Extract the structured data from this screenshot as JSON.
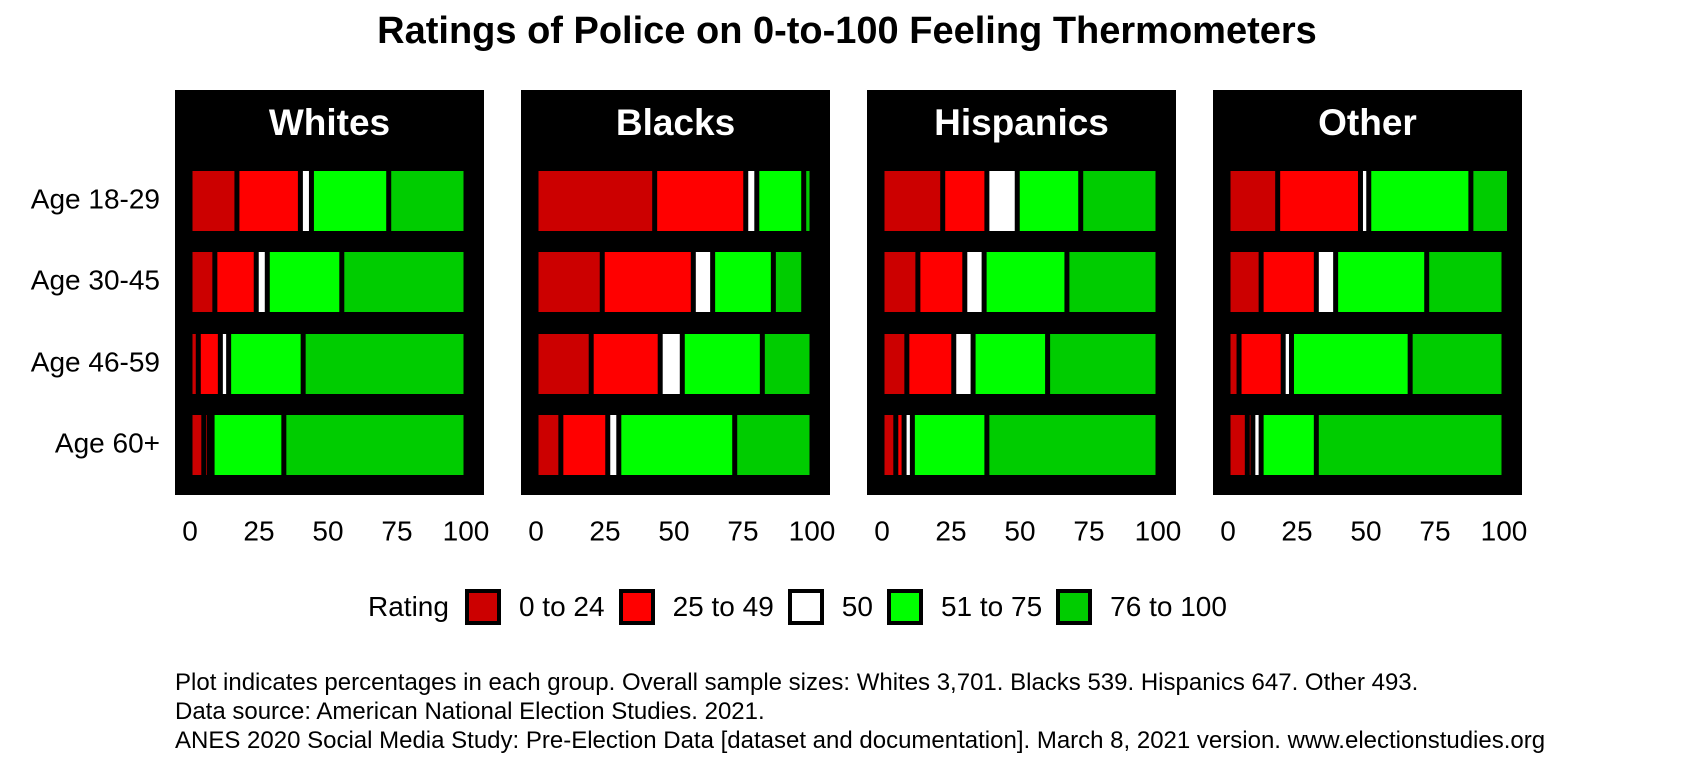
{
  "chart_data": {
    "type": "bar",
    "title": "Ratings of Police on 0-to-100 Feeling Thermometers",
    "facets": [
      "Whites",
      "Blacks",
      "Hispanics",
      "Other"
    ],
    "categories": [
      "Age 18-29",
      "Age 30-45",
      "Age 46-59",
      "Age 60+"
    ],
    "x_ticks": [
      "0",
      "25",
      "50",
      "75",
      "100"
    ],
    "xlim": [
      0,
      100
    ],
    "stacked": true,
    "legend_title": "Rating",
    "legend_position": "bottom",
    "series": [
      {
        "name": "0 to 24",
        "color": "#cc0000"
      },
      {
        "name": "25 to 49",
        "color": "#ff0000"
      },
      {
        "name": "50",
        "color": "#ffffff"
      },
      {
        "name": "51 to 75",
        "color": "#00ff00"
      },
      {
        "name": "76 to 100",
        "color": "#00cc00"
      }
    ],
    "panel_background": "#000000",
    "values": {
      "Whites": [
        [
          17,
          23,
          4,
          28,
          28
        ],
        [
          9,
          15,
          4,
          27,
          45
        ],
        [
          3,
          8,
          3,
          27,
          59
        ],
        [
          5,
          2,
          1,
          26,
          66
        ]
      ],
      "Blacks": [
        [
          43,
          33,
          4,
          17,
          3
        ],
        [
          24,
          33,
          7,
          22,
          11
        ],
        [
          20,
          25,
          8,
          29,
          18
        ],
        [
          9,
          17,
          4,
          42,
          28
        ]
      ],
      "Hispanics": [
        [
          22,
          16,
          11,
          23,
          28
        ],
        [
          13,
          17,
          7,
          30,
          33
        ],
        [
          9,
          17,
          7,
          27,
          40
        ],
        [
          5,
          3,
          3,
          27,
          62
        ]
      ],
      "Other": [
        [
          18,
          30,
          3,
          37,
          14
        ],
        [
          12,
          20,
          7,
          33,
          28
        ],
        [
          4,
          16,
          3,
          43,
          34
        ],
        [
          7,
          2,
          3,
          20,
          68
        ]
      ]
    }
  },
  "legend": {
    "title": "Rating",
    "items": [
      "0 to 24",
      "25 to 49",
      "50",
      "51 to 75",
      "76 to 100"
    ]
  },
  "caption": {
    "line1": "Plot indicates percentages in each group. Overall sample sizes: Whites 3,701. Blacks 539. Hispanics 647. Other 493.",
    "line2": "Data source: American National Election Studies. 2021.",
    "line3": "ANES 2020 Social Media Study: Pre-Election Data [dataset and documentation]. March 8, 2021 version. www.electionstudies.org"
  }
}
